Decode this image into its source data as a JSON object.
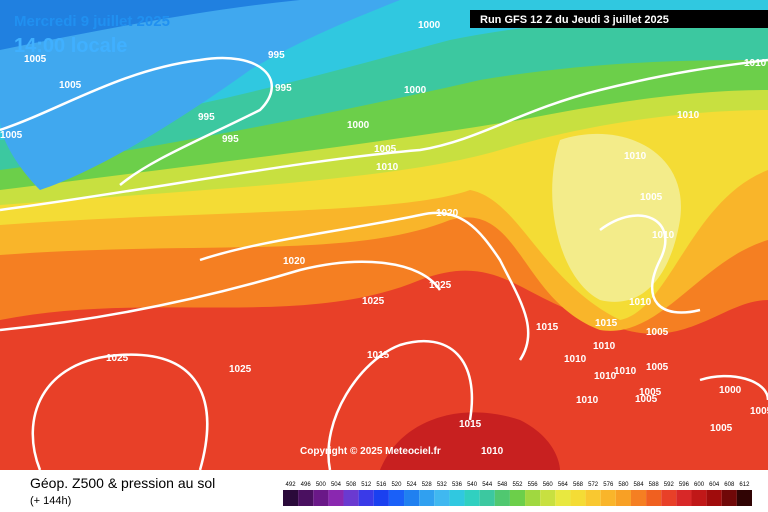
{
  "header": {
    "date": "Mercredi 9 juillet 2025",
    "time": "14:00 locale",
    "run": "Run GFS 12 Z du Jeudi 3 juillet 2025"
  },
  "copyright": "Copyright © 2025 Meteociel.fr",
  "footer": {
    "title": "Géop. Z500 & pression au sol",
    "lead": "(+ 144h)"
  },
  "scale": {
    "labels": [
      492,
      496,
      500,
      504,
      508,
      512,
      516,
      520,
      524,
      528,
      532,
      536,
      540,
      544,
      548,
      552,
      556,
      560,
      564,
      568,
      572,
      576,
      580,
      584,
      588,
      592,
      596,
      600,
      604,
      608,
      612
    ],
    "colors": [
      "#2a0a3a",
      "#4a1060",
      "#6a1888",
      "#8a28b0",
      "#6a3ad0",
      "#3a3ae8",
      "#1a40f0",
      "#1a60f8",
      "#2080f0",
      "#30a0f0",
      "#40b8f0",
      "#30c8e0",
      "#30d0c0",
      "#3cc8a0",
      "#50c870",
      "#6ccf4a",
      "#a0d840",
      "#c8e040",
      "#e8e840",
      "#f4dc35",
      "#f9c830",
      "#f9b52a",
      "#f8a025",
      "#f57f22",
      "#f06020",
      "#e84028",
      "#d82828",
      "#c01818",
      "#a00c0c",
      "#700808",
      "#300404"
    ]
  },
  "isobar_labels": [
    "1000",
    "995",
    "995",
    "1005",
    "1005",
    "995",
    "995",
    "1005",
    "1000",
    "1000",
    "1005",
    "1010",
    "1010",
    "1010",
    "1010",
    "1005",
    "1010",
    "1020",
    "1020",
    "1025",
    "1025",
    "1010",
    "1015",
    "1015",
    "1005",
    "1010",
    "1010",
    "1005",
    "1010",
    "1010",
    "1025",
    "1025",
    "1015",
    "1000",
    "1005",
    "1005",
    "1010",
    "1005",
    "1005",
    "1015",
    "1010"
  ]
}
